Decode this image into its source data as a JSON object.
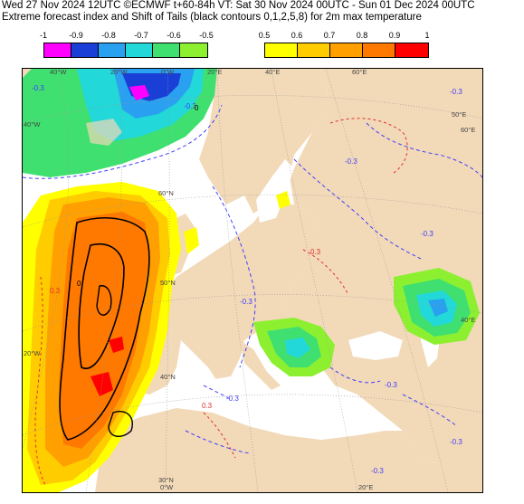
{
  "header": {
    "line1": "Wed 27 Nov 2024 12UTC ©ECMWF t+60-84h  VT: Sat 30 Nov 2024 00UTC - Sun 01 Dec 2024 00UTC",
    "line2": "Extreme forecast index and Shift of Tails (black contours 0,1,2,5,8) for 2m max temperature"
  },
  "legend_negative": {
    "ticks": [
      "-1",
      "-0.9",
      "-0.8",
      "-0.7",
      "-0.6",
      "-0.5"
    ],
    "colors": [
      "#ff00ff",
      "#1a3fd6",
      "#2aa0f0",
      "#22d8d8",
      "#3fe070",
      "#8cf030"
    ]
  },
  "legend_positive": {
    "ticks": [
      "0.5",
      "0.6",
      "0.7",
      "0.8",
      "0.9",
      "1"
    ],
    "colors": [
      "#ffff00",
      "#ffcc00",
      "#ffa000",
      "#ff7800",
      "#ff0000"
    ]
  },
  "map": {
    "colors": {
      "land": "#f2d9b8",
      "sea": "#ffffff",
      "contour_dashed_blue": "#4040ff",
      "contour_dashed_red": "#e03030",
      "shift_of_tails": "#000000"
    },
    "top_lon_labels": [
      "40°W",
      "20°W",
      "0°W",
      "20°E",
      "40°E",
      "60°E"
    ],
    "bottom_lon_labels": [
      "0°W",
      "20°E"
    ],
    "left_lat_labels": [
      "40°W",
      "20°W"
    ],
    "right_lat_labels": [
      "60°E",
      "40°E"
    ],
    "inner_labels": [
      "60°N",
      "50°N",
      "40°N",
      "30°N",
      "50°E"
    ],
    "contour_labels": [
      "-0.3",
      "-0.3",
      "-0.3",
      "-0.3",
      "-0.3",
      "-0.3",
      "-0.3",
      "-0.3",
      "-0.3",
      "-0.3",
      "0.3",
      "0.3",
      "0.3",
      "0",
      "0"
    ]
  }
}
